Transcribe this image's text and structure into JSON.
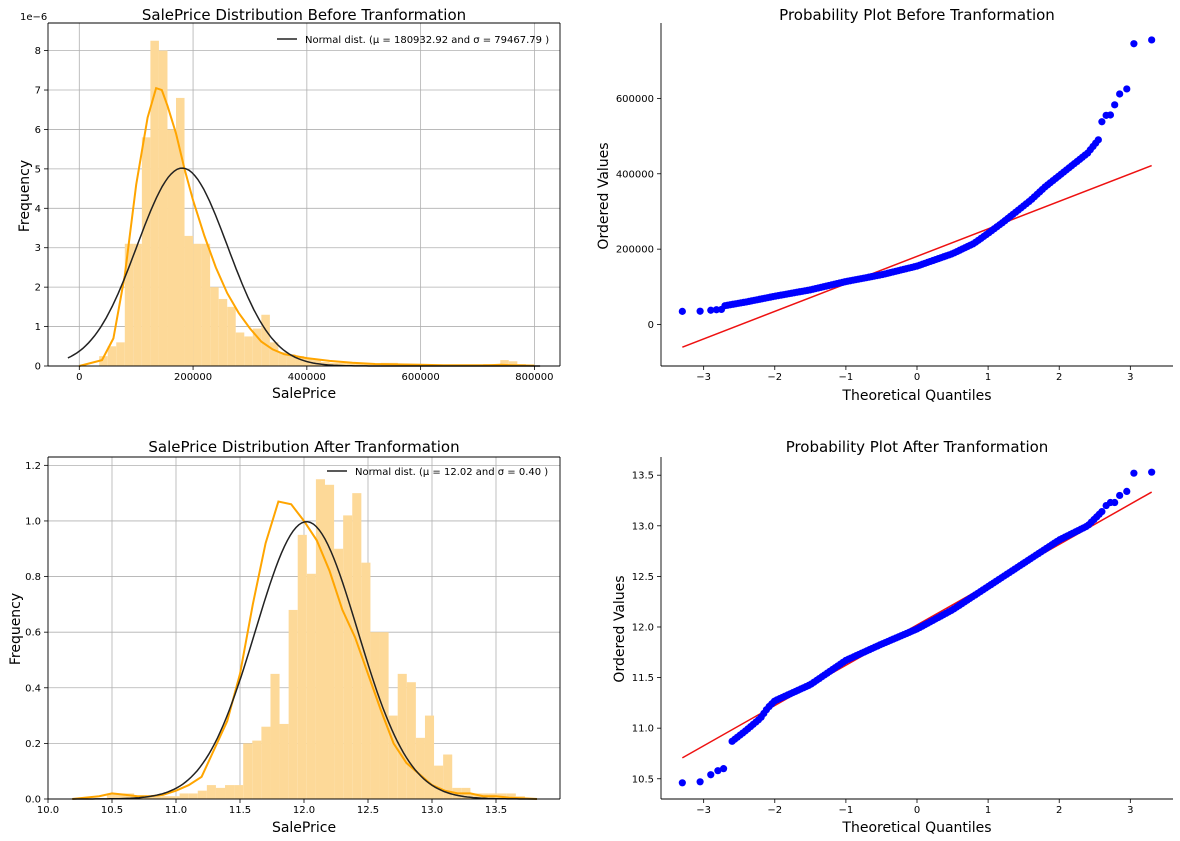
{
  "chart_data": [
    {
      "type": "bar",
      "title": "SalePrice Distribution Before Tranformation",
      "xlabel": "SalePrice",
      "ylabel": "Frequency",
      "y_offset_text": "1e−6",
      "xlim": [
        -55000,
        845000
      ],
      "ylim": [
        0,
        8.7
      ],
      "xticks": [
        0,
        200000,
        400000,
        600000,
        800000
      ],
      "xtick_labels": [
        "0",
        "200000",
        "400000",
        "600000",
        "800000"
      ],
      "yticks": [
        0,
        1,
        2,
        3,
        4,
        5,
        6,
        7,
        8
      ],
      "ytick_labels": [
        "0",
        "1",
        "2",
        "3",
        "4",
        "5",
        "6",
        "7",
        "8"
      ],
      "grid": true,
      "legend": {
        "position": "top-right",
        "label": "Normal dist. ($\\mu=$ 180932.92 and $\\sigma=$ 79467.79 )"
      },
      "normal": {
        "mu": 180932.92,
        "sigma": 79467.79,
        "x_range": [
          -20000,
          810000
        ]
      },
      "histogram": {
        "bin_width": 15000,
        "start": 35000,
        "values": [
          0.25,
          0.5,
          0.6,
          3.1,
          3.1,
          5.8,
          8.25,
          8.0,
          6.0,
          6.8,
          3.3,
          3.1,
          3.1,
          2.0,
          1.7,
          1.5,
          0.85,
          0.75,
          0.95,
          1.3,
          0.6,
          0.35,
          0.3,
          0.25,
          0.2,
          0.15,
          0.1,
          0.08,
          0.08,
          0.08,
          0.08,
          0.06,
          0.05,
          0.08,
          0.08,
          0.05,
          0.05,
          0.05,
          0,
          0,
          0,
          0,
          0,
          0,
          0,
          0.05,
          0.05,
          0.15,
          0.12,
          0.05
        ]
      },
      "kde": {
        "x": [
          0,
          40000,
          60000,
          80000,
          100000,
          120000,
          135000,
          145000,
          155000,
          170000,
          185000,
          200000,
          220000,
          240000,
          260000,
          280000,
          300000,
          320000,
          340000,
          360000,
          380000,
          400000,
          440000,
          480000,
          520000,
          560000,
          600000,
          640000,
          680000,
          720000,
          740000,
          760000,
          800000
        ],
        "y": [
          0,
          0.15,
          0.7,
          2.3,
          4.6,
          6.3,
          7.05,
          7.0,
          6.6,
          5.9,
          5.0,
          4.2,
          3.3,
          2.5,
          1.85,
          1.35,
          0.95,
          0.62,
          0.42,
          0.3,
          0.25,
          0.2,
          0.13,
          0.08,
          0.05,
          0.04,
          0.03,
          0.02,
          0.02,
          0.02,
          0.03,
          0.02,
          0.01
        ]
      }
    },
    {
      "type": "scatter",
      "title": "Probability Plot Before Tranformation",
      "xlabel": "Theoretical Quantiles",
      "ylabel": "Ordered Values",
      "xlim": [
        -3.6,
        3.6
      ],
      "ylim": [
        -110000,
        800000
      ],
      "xticks": [
        -3,
        -2,
        -1,
        0,
        1,
        2,
        3
      ],
      "xtick_labels": [
        "−3",
        "−2",
        "−1",
        "0",
        "1",
        "2",
        "3"
      ],
      "yticks": [
        0,
        200000,
        400000,
        600000
      ],
      "ytick_labels": [
        "0",
        "200000",
        "400000",
        "600000"
      ],
      "grid": false,
      "fit_line": {
        "slope": 73000,
        "intercept": 180900,
        "x_range": [
          -3.3,
          3.3
        ]
      },
      "points_curve": {
        "q": [
          -2.7,
          -2.4,
          -2.0,
          -1.5,
          -1.0,
          -0.5,
          0,
          0.5,
          0.8,
          1.0,
          1.2,
          1.4,
          1.6,
          1.8,
          2.0,
          2.2,
          2.4,
          2.55
        ],
        "v": [
          50000,
          60000,
          75000,
          92000,
          114000,
          132000,
          155000,
          188000,
          215000,
          242000,
          270000,
          300000,
          330000,
          365000,
          395000,
          425000,
          455000,
          490000
        ]
      },
      "points_extra": [
        {
          "x": -3.3,
          "y": 34900
        },
        {
          "x": -3.05,
          "y": 35300
        },
        {
          "x": -2.9,
          "y": 37900
        },
        {
          "x": -2.82,
          "y": 39300
        },
        {
          "x": -2.75,
          "y": 40000
        },
        {
          "x": 2.6,
          "y": 538000
        },
        {
          "x": 2.66,
          "y": 555000
        },
        {
          "x": 2.72,
          "y": 556000
        },
        {
          "x": 2.78,
          "y": 582900
        },
        {
          "x": 2.85,
          "y": 611700
        },
        {
          "x": 2.95,
          "y": 625000
        },
        {
          "x": 3.05,
          "y": 745000
        },
        {
          "x": 3.3,
          "y": 755000
        }
      ]
    },
    {
      "type": "bar",
      "title": "SalePrice Distribution After Tranformation",
      "xlabel": "SalePrice",
      "ylabel": "Frequency",
      "xlim": [
        10.0,
        14.0
      ],
      "ylim": [
        0,
        1.23
      ],
      "xticks": [
        10.0,
        10.5,
        11.0,
        11.5,
        12.0,
        12.5,
        13.0,
        13.5
      ],
      "xtick_labels": [
        "10.0",
        "10.5",
        "11.0",
        "11.5",
        "12.0",
        "12.5",
        "13.0",
        "13.5"
      ],
      "yticks": [
        0,
        0.2,
        0.4,
        0.6,
        0.8,
        1.0,
        1.2
      ],
      "ytick_labels": [
        "0.0",
        "0.2",
        "0.4",
        "0.6",
        "0.8",
        "1.0",
        "1.2"
      ],
      "grid": true,
      "legend": {
        "position": "top-right",
        "label": "Normal dist. ($\\mu=$ 12.02 and $\\sigma=$ 0.40 )"
      },
      "normal": {
        "mu": 12.02,
        "sigma": 0.4,
        "x_range": [
          10.19,
          13.82
        ]
      },
      "histogram": {
        "bin_width": 0.071,
        "start": 10.46,
        "values": [
          0.02,
          0.02,
          0.02,
          0.01,
          0.01,
          0.01,
          0.01,
          0.01,
          0.02,
          0.02,
          0.03,
          0.05,
          0.04,
          0.05,
          0.05,
          0.2,
          0.21,
          0.26,
          0.45,
          0.27,
          0.68,
          0.95,
          0.81,
          1.15,
          1.13,
          0.9,
          1.02,
          1.1,
          0.85,
          0.6,
          0.6,
          0.3,
          0.45,
          0.42,
          0.22,
          0.3,
          0.12,
          0.16,
          0.04,
          0.04,
          0.02,
          0.02,
          0.02,
          0.02,
          0.02,
          0.01
        ]
      },
      "kde": {
        "x": [
          10.19,
          10.4,
          10.5,
          10.6,
          10.7,
          10.8,
          10.9,
          11.0,
          11.1,
          11.2,
          11.3,
          11.4,
          11.5,
          11.6,
          11.7,
          11.8,
          11.9,
          12.0,
          12.1,
          12.2,
          12.3,
          12.4,
          12.5,
          12.6,
          12.7,
          12.8,
          12.9,
          13.0,
          13.1,
          13.2,
          13.3,
          13.4,
          13.5,
          13.6,
          13.82
        ],
        "y": [
          0.0,
          0.01,
          0.02,
          0.015,
          0.01,
          0.01,
          0.015,
          0.03,
          0.05,
          0.08,
          0.18,
          0.28,
          0.45,
          0.7,
          0.92,
          1.07,
          1.06,
          1.0,
          0.93,
          0.82,
          0.68,
          0.58,
          0.45,
          0.32,
          0.2,
          0.13,
          0.09,
          0.05,
          0.03,
          0.02,
          0.02,
          0.01,
          0.01,
          0.005,
          0.0
        ]
      }
    },
    {
      "type": "scatter",
      "title": "Probability Plot After Tranformation",
      "xlabel": "Theoretical Quantiles",
      "ylabel": "Ordered Values",
      "xlim": [
        -3.6,
        3.6
      ],
      "ylim": [
        10.3,
        13.68
      ],
      "xticks": [
        -3,
        -2,
        -1,
        0,
        1,
        2,
        3
      ],
      "xtick_labels": [
        "−3",
        "−2",
        "−1",
        "0",
        "1",
        "2",
        "3"
      ],
      "yticks": [
        10.5,
        11.0,
        11.5,
        12.0,
        12.5,
        13.0,
        13.5
      ],
      "ytick_labels": [
        "10.5",
        "11.0",
        "11.5",
        "12.0",
        "12.5",
        "13.0",
        "13.5"
      ],
      "grid": false,
      "fit_line": {
        "slope": 0.398,
        "intercept": 12.02,
        "x_range": [
          -3.3,
          3.3
        ]
      },
      "points_curve": {
        "q": [
          -2.6,
          -2.4,
          -2.2,
          -2.1,
          -2.0,
          -1.5,
          -1.0,
          -0.5,
          0,
          0.5,
          1.0,
          1.5,
          2.0,
          2.4,
          2.6
        ],
        "v": [
          10.87,
          10.98,
          11.1,
          11.2,
          11.27,
          11.43,
          11.67,
          11.83,
          11.98,
          12.17,
          12.4,
          12.63,
          12.86,
          13.0,
          13.14
        ]
      },
      "points_extra": [
        {
          "x": -3.3,
          "y": 10.46
        },
        {
          "x": -3.05,
          "y": 10.47
        },
        {
          "x": -2.9,
          "y": 10.54
        },
        {
          "x": -2.8,
          "y": 10.58
        },
        {
          "x": -2.72,
          "y": 10.6
        },
        {
          "x": 2.66,
          "y": 13.2
        },
        {
          "x": 2.72,
          "y": 13.23
        },
        {
          "x": 2.78,
          "y": 13.23
        },
        {
          "x": 2.85,
          "y": 13.3
        },
        {
          "x": 2.95,
          "y": 13.34
        },
        {
          "x": 3.05,
          "y": 13.52
        },
        {
          "x": 3.3,
          "y": 13.53
        }
      ]
    }
  ]
}
